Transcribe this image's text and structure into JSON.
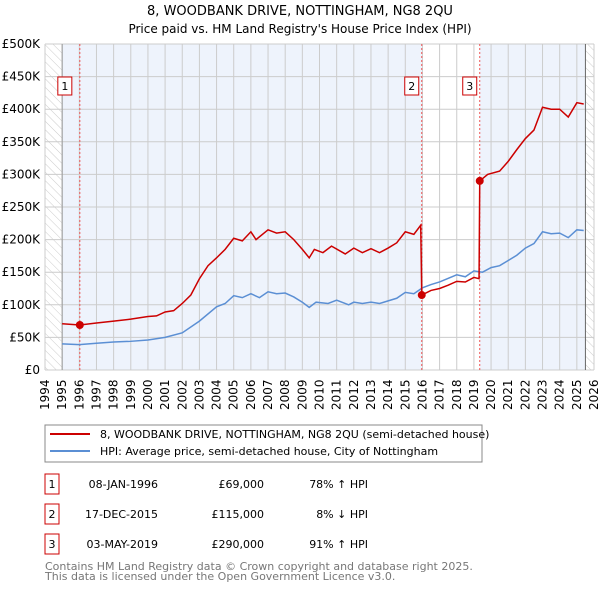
{
  "chart_data": {
    "type": "line",
    "title": "8, WOODBANK DRIVE, NOTTINGHAM, NG8 2QU",
    "subtitle": "Price paid vs. HM Land Registry's House Price Index (HPI)",
    "xlim": [
      1994,
      2026
    ],
    "ylim": [
      0,
      500000
    ],
    "yticks": [
      0,
      50000,
      100000,
      150000,
      200000,
      250000,
      300000,
      350000,
      400000,
      450000,
      500000
    ],
    "ytick_labels": [
      "£0",
      "£50K",
      "£100K",
      "£150K",
      "£200K",
      "£250K",
      "£300K",
      "£350K",
      "£400K",
      "£450K",
      "£500K"
    ],
    "xticks": [
      "1994",
      "1995",
      "1996",
      "1997",
      "1998",
      "1999",
      "2000",
      "2001",
      "2002",
      "2003",
      "2004",
      "2005",
      "2006",
      "2007",
      "2008",
      "2009",
      "2010",
      "2011",
      "2012",
      "2013",
      "2014",
      "2015",
      "2016",
      "2017",
      "2018",
      "2019",
      "2020",
      "2021",
      "2022",
      "2023",
      "2024",
      "2025",
      "2026"
    ],
    "grid": true,
    "series": [
      {
        "name": "8, WOODBANK DRIVE, NOTTINGHAM, NG8 2QU (semi-detached house)",
        "color": "#cc0000",
        "points": [
          [
            1995,
            71000
          ],
          [
            1996.03,
            69000
          ],
          [
            1997,
            72000
          ],
          [
            1998,
            75000
          ],
          [
            1999,
            78000
          ],
          [
            2000,
            82000
          ],
          [
            2000.5,
            83000
          ],
          [
            2001,
            89000
          ],
          [
            2001.5,
            91000
          ],
          [
            2002,
            102000
          ],
          [
            2002.5,
            115000
          ],
          [
            2003,
            140000
          ],
          [
            2003.5,
            160000
          ],
          [
            2004,
            172000
          ],
          [
            2004.5,
            185000
          ],
          [
            2005,
            202000
          ],
          [
            2005.5,
            198000
          ],
          [
            2006,
            212000
          ],
          [
            2006.3,
            200000
          ],
          [
            2007,
            215000
          ],
          [
            2007.5,
            210000
          ],
          [
            2008,
            212000
          ],
          [
            2008.5,
            200000
          ],
          [
            2009,
            185000
          ],
          [
            2009.4,
            172000
          ],
          [
            2009.7,
            185000
          ],
          [
            2010.2,
            180000
          ],
          [
            2010.7,
            190000
          ],
          [
            2011.5,
            178000
          ],
          [
            2012,
            187000
          ],
          [
            2012.5,
            180000
          ],
          [
            2013,
            186000
          ],
          [
            2013.5,
            180000
          ],
          [
            2014,
            187000
          ],
          [
            2014.5,
            195000
          ],
          [
            2015,
            212000
          ],
          [
            2015.5,
            208000
          ],
          [
            2015.9,
            222000
          ],
          [
            2015.96,
            115000
          ],
          [
            2016.5,
            122000
          ],
          [
            2017,
            125000
          ],
          [
            2017.5,
            130000
          ],
          [
            2018,
            136000
          ],
          [
            2018.5,
            135000
          ],
          [
            2019,
            142000
          ],
          [
            2019.3,
            140000
          ],
          [
            2019.34,
            290000
          ],
          [
            2019.8,
            300000
          ],
          [
            2020.5,
            305000
          ],
          [
            2021,
            320000
          ],
          [
            2021.5,
            338000
          ],
          [
            2022,
            355000
          ],
          [
            2022.5,
            368000
          ],
          [
            2023,
            403000
          ],
          [
            2023.5,
            400000
          ],
          [
            2024,
            400000
          ],
          [
            2024.5,
            388000
          ],
          [
            2025,
            410000
          ],
          [
            2025.4,
            408000
          ]
        ]
      },
      {
        "name": "HPI: Average price, semi-detached house, City of Nottingham",
        "color": "#5b8fd4",
        "points": [
          [
            1995,
            40000
          ],
          [
            1996,
            39000
          ],
          [
            1997,
            41000
          ],
          [
            1998,
            43000
          ],
          [
            1999,
            44000
          ],
          [
            2000,
            46000
          ],
          [
            2001,
            50000
          ],
          [
            2002,
            57000
          ],
          [
            2003,
            75000
          ],
          [
            2004,
            97000
          ],
          [
            2004.5,
            102000
          ],
          [
            2005,
            114000
          ],
          [
            2005.5,
            111000
          ],
          [
            2006,
            117000
          ],
          [
            2006.5,
            111000
          ],
          [
            2007,
            120000
          ],
          [
            2007.5,
            117000
          ],
          [
            2008,
            118000
          ],
          [
            2008.5,
            112000
          ],
          [
            2009,
            104000
          ],
          [
            2009.4,
            96000
          ],
          [
            2009.8,
            104000
          ],
          [
            2010.5,
            102000
          ],
          [
            2011,
            107000
          ],
          [
            2011.7,
            100000
          ],
          [
            2012,
            104000
          ],
          [
            2012.5,
            102000
          ],
          [
            2013,
            104000
          ],
          [
            2013.5,
            102000
          ],
          [
            2014,
            106000
          ],
          [
            2014.5,
            110000
          ],
          [
            2015,
            119000
          ],
          [
            2015.5,
            117000
          ],
          [
            2016,
            126000
          ],
          [
            2016.5,
            131000
          ],
          [
            2017,
            135000
          ],
          [
            2018,
            146000
          ],
          [
            2018.5,
            143000
          ],
          [
            2019,
            152000
          ],
          [
            2019.5,
            150000
          ],
          [
            2020,
            157000
          ],
          [
            2020.5,
            160000
          ],
          [
            2021,
            168000
          ],
          [
            2021.5,
            176000
          ],
          [
            2022,
            187000
          ],
          [
            2022.5,
            194000
          ],
          [
            2023,
            212000
          ],
          [
            2023.5,
            209000
          ],
          [
            2024,
            210000
          ],
          [
            2024.5,
            203000
          ],
          [
            2025,
            215000
          ],
          [
            2025.4,
            214000
          ]
        ]
      }
    ],
    "sales": [
      {
        "label": "1",
        "x": 1996.03,
        "y": 69000,
        "date": "08-JAN-1996",
        "price": "£69,000",
        "hpi": "78% ↑ HPI"
      },
      {
        "label": "2",
        "x": 2015.96,
        "y": 115000,
        "date": "17-DEC-2015",
        "price": "£115,000",
        "hpi": "8% ↓ HPI"
      },
      {
        "label": "3",
        "x": 2019.34,
        "y": 290000,
        "date": "03-MAY-2019",
        "price": "£290,000",
        "hpi": "91% ↑ HPI"
      }
    ],
    "legend_position": "bottom"
  },
  "footer": [
    "Contains HM Land Registry data © Crown copyright and database right 2025.",
    "This data is licensed under the Open Government Licence v3.0."
  ]
}
